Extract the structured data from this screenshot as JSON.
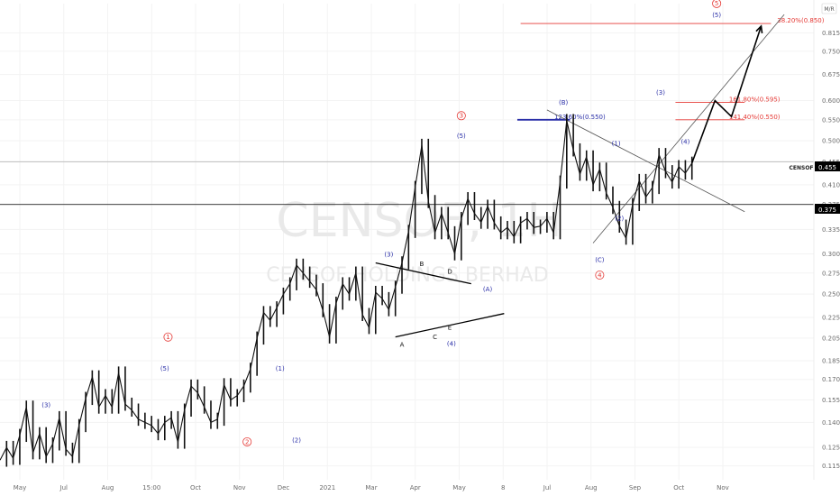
{
  "chart_data": {
    "type": "line",
    "title": "",
    "watermark_symbol": "CENSOF, 1H",
    "watermark_name": "CENSOF HOLDINGS BERHAD",
    "ymin": 0.108,
    "ymax": 0.93,
    "yscale": "log",
    "y_ticks": [
      "0.815",
      "0.750",
      "0.675",
      "0.600",
      "0.550",
      "0.500",
      "0.455",
      "0.410",
      "0.375",
      "0.335",
      "0.300",
      "0.275",
      "0.250",
      "0.225",
      "0.205",
      "0.185",
      "0.170",
      "0.155",
      "0.140",
      "0.125",
      "0.115"
    ],
    "scale_button": "M/R",
    "x_ticks": [
      "May",
      "Jul",
      "Aug",
      "15:00",
      "Oct",
      "Nov",
      "Dec",
      "2021",
      "Mar",
      "Apr",
      "May",
      "8",
      "Jul",
      "Aug",
      "Sep",
      "Oct",
      "Nov"
    ],
    "symbol_badge": {
      "label": "CENSOF",
      "value": "0.455"
    },
    "level_badge": {
      "value": "0.375"
    },
    "price_path": [
      [
        0.0,
        0.118
      ],
      [
        0.02,
        0.125
      ],
      [
        0.04,
        0.119
      ],
      [
        0.06,
        0.132
      ],
      [
        0.08,
        0.15
      ],
      [
        0.1,
        0.122
      ],
      [
        0.12,
        0.133
      ],
      [
        0.14,
        0.12
      ],
      [
        0.16,
        0.127
      ],
      [
        0.18,
        0.143
      ],
      [
        0.2,
        0.124
      ],
      [
        0.22,
        0.12
      ],
      [
        0.24,
        0.138
      ],
      [
        0.26,
        0.156
      ],
      [
        0.28,
        0.172
      ],
      [
        0.3,
        0.15
      ],
      [
        0.32,
        0.158
      ],
      [
        0.34,
        0.15
      ],
      [
        0.36,
        0.175
      ],
      [
        0.38,
        0.152
      ],
      [
        0.4,
        0.148
      ],
      [
        0.42,
        0.142
      ],
      [
        0.44,
        0.14
      ],
      [
        0.46,
        0.138
      ],
      [
        0.48,
        0.133
      ],
      [
        0.5,
        0.14
      ],
      [
        0.52,
        0.143
      ],
      [
        0.54,
        0.128
      ],
      [
        0.56,
        0.148
      ],
      [
        0.58,
        0.165
      ],
      [
        0.6,
        0.16
      ],
      [
        0.62,
        0.15
      ],
      [
        0.64,
        0.14
      ],
      [
        0.66,
        0.142
      ],
      [
        0.68,
        0.166
      ],
      [
        0.7,
        0.155
      ],
      [
        0.72,
        0.158
      ],
      [
        0.74,
        0.165
      ],
      [
        0.76,
        0.178
      ],
      [
        0.78,
        0.205
      ],
      [
        0.8,
        0.23
      ],
      [
        0.82,
        0.222
      ],
      [
        0.84,
        0.235
      ],
      [
        0.86,
        0.25
      ],
      [
        0.88,
        0.262
      ],
      [
        0.9,
        0.285
      ],
      [
        0.92,
        0.275
      ],
      [
        0.94,
        0.265
      ],
      [
        0.96,
        0.255
      ],
      [
        0.98,
        0.232
      ],
      [
        1.0,
        0.206
      ],
      [
        1.02,
        0.24
      ],
      [
        1.04,
        0.262
      ],
      [
        1.06,
        0.25
      ],
      [
        1.08,
        0.275
      ],
      [
        1.1,
        0.228
      ],
      [
        1.12,
        0.215
      ],
      [
        1.14,
        0.252
      ],
      [
        1.16,
        0.245
      ],
      [
        1.18,
        0.233
      ],
      [
        1.2,
        0.258
      ],
      [
        1.22,
        0.288
      ],
      [
        1.24,
        0.332
      ],
      [
        1.26,
        0.405
      ],
      [
        1.28,
        0.49
      ],
      [
        1.3,
        0.38
      ],
      [
        1.32,
        0.33
      ],
      [
        1.34,
        0.36
      ],
      [
        1.36,
        0.33
      ],
      [
        1.38,
        0.3
      ],
      [
        1.4,
        0.352
      ],
      [
        1.42,
        0.385
      ],
      [
        1.44,
        0.36
      ],
      [
        1.46,
        0.346
      ],
      [
        1.48,
        0.372
      ],
      [
        1.5,
        0.345
      ],
      [
        1.52,
        0.33
      ],
      [
        1.54,
        0.338
      ],
      [
        1.56,
        0.324
      ],
      [
        1.58,
        0.345
      ],
      [
        1.6,
        0.352
      ],
      [
        1.62,
        0.338
      ],
      [
        1.64,
        0.34
      ],
      [
        1.66,
        0.352
      ],
      [
        1.68,
        0.33
      ],
      [
        1.7,
        0.415
      ],
      [
        1.72,
        0.548
      ],
      [
        1.74,
        0.48
      ],
      [
        1.76,
        0.43
      ],
      [
        1.78,
        0.465
      ],
      [
        1.8,
        0.41
      ],
      [
        1.82,
        0.44
      ],
      [
        1.84,
        0.395
      ],
      [
        1.86,
        0.37
      ],
      [
        1.88,
        0.34
      ],
      [
        1.9,
        0.322
      ],
      [
        1.92,
        0.375
      ],
      [
        1.94,
        0.418
      ],
      [
        1.96,
        0.388
      ],
      [
        1.98,
        0.405
      ],
      [
        2.0,
        0.47
      ],
      [
        2.02,
        0.435
      ],
      [
        2.04,
        0.415
      ],
      [
        2.06,
        0.445
      ],
      [
        2.08,
        0.432
      ],
      [
        2.1,
        0.452
      ]
    ],
    "projection_path": [
      [
        2.1,
        0.452
      ],
      [
        2.17,
        0.6
      ],
      [
        2.22,
        0.558
      ],
      [
        2.31,
        0.84
      ]
    ],
    "hlines": [
      {
        "y": 0.455,
        "color": "#bdbdbd",
        "width": 1
      },
      {
        "y": 0.375,
        "color": "#000000",
        "width": 0.8
      }
    ],
    "fib_levels": [
      {
        "y": 0.85,
        "label": "38.20%(0.850)",
        "color": "#e53935",
        "x0": 1.58,
        "x1": 2.34,
        "tx": 2.43
      },
      {
        "y": 0.595,
        "label": "161.80%(0.595)",
        "color": "#e53935",
        "x0": 2.05,
        "x1": 2.26,
        "tx": 2.29
      },
      {
        "y": 0.55,
        "label": "141.40%(0.550)",
        "color": "#e53935",
        "x0": 2.05,
        "x1": 2.26,
        "tx": 2.29
      },
      {
        "y": 0.55,
        "label": "123.60%(0.550)",
        "color": "#2a2fa8",
        "x0": 1.57,
        "x1": 1.73,
        "tx": 1.76
      }
    ],
    "trendlines": [
      {
        "pts": [
          [
            1.14,
            0.288
          ],
          [
            1.43,
            0.262
          ]
        ],
        "color": "#000000",
        "width": 1.3
      },
      {
        "pts": [
          [
            1.2,
            0.206
          ],
          [
            1.53,
            0.229
          ]
        ],
        "color": "#000000",
        "width": 1.3
      },
      {
        "pts": [
          [
            1.66,
            0.575
          ],
          [
            2.26,
            0.363
          ]
        ],
        "color": "#555555",
        "width": 0.8
      },
      {
        "pts": [
          [
            1.8,
            0.315
          ],
          [
            2.38,
            0.885
          ]
        ],
        "color": "#555555",
        "width": 0.8
      }
    ],
    "annotations": [
      {
        "t": "(3)",
        "x": 0.14,
        "y": 0.15,
        "c": "blue"
      },
      {
        "t": "1",
        "x": 0.51,
        "y": 0.204,
        "c": "red",
        "circle": true
      },
      {
        "t": "(5)",
        "x": 0.5,
        "y": 0.177,
        "c": "blue"
      },
      {
        "t": "2",
        "x": 0.75,
        "y": 0.127,
        "c": "red",
        "circle": true
      },
      {
        "t": "(1)",
        "x": 0.85,
        "y": 0.177,
        "c": "blue"
      },
      {
        "t": "(2)",
        "x": 0.9,
        "y": 0.128,
        "c": "blue"
      },
      {
        "t": "(3)",
        "x": 1.18,
        "y": 0.296,
        "c": "blue"
      },
      {
        "t": "A",
        "x": 1.22,
        "y": 0.197,
        "c": "black"
      },
      {
        "t": "B",
        "x": 1.28,
        "y": 0.284,
        "c": "black"
      },
      {
        "t": "C",
        "x": 1.32,
        "y": 0.204,
        "c": "black"
      },
      {
        "t": "D",
        "x": 1.365,
        "y": 0.274,
        "c": "black"
      },
      {
        "t": "E",
        "x": 1.365,
        "y": 0.213,
        "c": "black"
      },
      {
        "t": "(4)",
        "x": 1.37,
        "y": 0.198,
        "c": "blue"
      },
      {
        "t": "3",
        "x": 1.4,
        "y": 0.555,
        "c": "red",
        "circle": true
      },
      {
        "t": "(5)",
        "x": 1.4,
        "y": 0.507,
        "c": "blue"
      },
      {
        "t": "(A)",
        "x": 1.48,
        "y": 0.253,
        "c": "blue"
      },
      {
        "t": "(B)",
        "x": 1.71,
        "y": 0.589,
        "c": "blue"
      },
      {
        "t": "(C)",
        "x": 1.82,
        "y": 0.289,
        "c": "blue"
      },
      {
        "t": "4",
        "x": 1.82,
        "y": 0.27,
        "c": "red",
        "circle": true
      },
      {
        "t": "(1)",
        "x": 1.87,
        "y": 0.489,
        "c": "blue"
      },
      {
        "t": "(2)",
        "x": 1.88,
        "y": 0.349,
        "c": "blue"
      },
      {
        "t": "(3)",
        "x": 2.005,
        "y": 0.616,
        "c": "blue"
      },
      {
        "t": "(4)",
        "x": 2.08,
        "y": 0.493,
        "c": "blue"
      },
      {
        "t": "5",
        "x": 2.175,
        "y": 0.922,
        "c": "red",
        "circle": true
      },
      {
        "t": "(5)",
        "x": 2.175,
        "y": 0.874,
        "c": "blue"
      }
    ]
  }
}
